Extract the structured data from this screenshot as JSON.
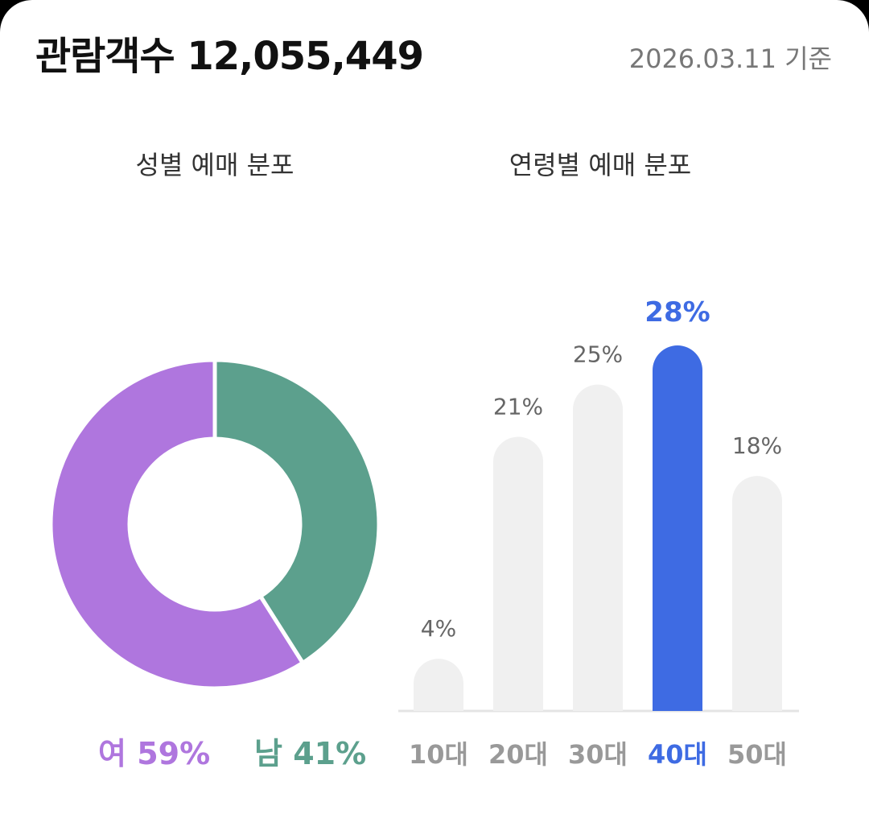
{
  "header": {
    "title": "관람객수 12,055,449",
    "date": "2026.03.11 기준"
  },
  "colors": {
    "female": "#AF76DE",
    "male": "#5CA08D",
    "highlight": "#3E6BE3",
    "bar_default": "#F0F0F0",
    "label_default": "#999999"
  },
  "chart_data": [
    {
      "type": "pie",
      "title": "성별 예매 분포",
      "series": [
        {
          "name": "여",
          "value": 59,
          "label": "여 59%"
        },
        {
          "name": "남",
          "value": 41,
          "label": "남 41%"
        }
      ]
    },
    {
      "type": "bar",
      "title": "연령별 예매 분포",
      "categories": [
        "10대",
        "20대",
        "30대",
        "40대",
        "50대"
      ],
      "values": [
        4,
        21,
        25,
        28,
        18
      ],
      "value_labels": [
        "4%",
        "21%",
        "25%",
        "28%",
        "18%"
      ],
      "highlight": "40대"
    }
  ]
}
